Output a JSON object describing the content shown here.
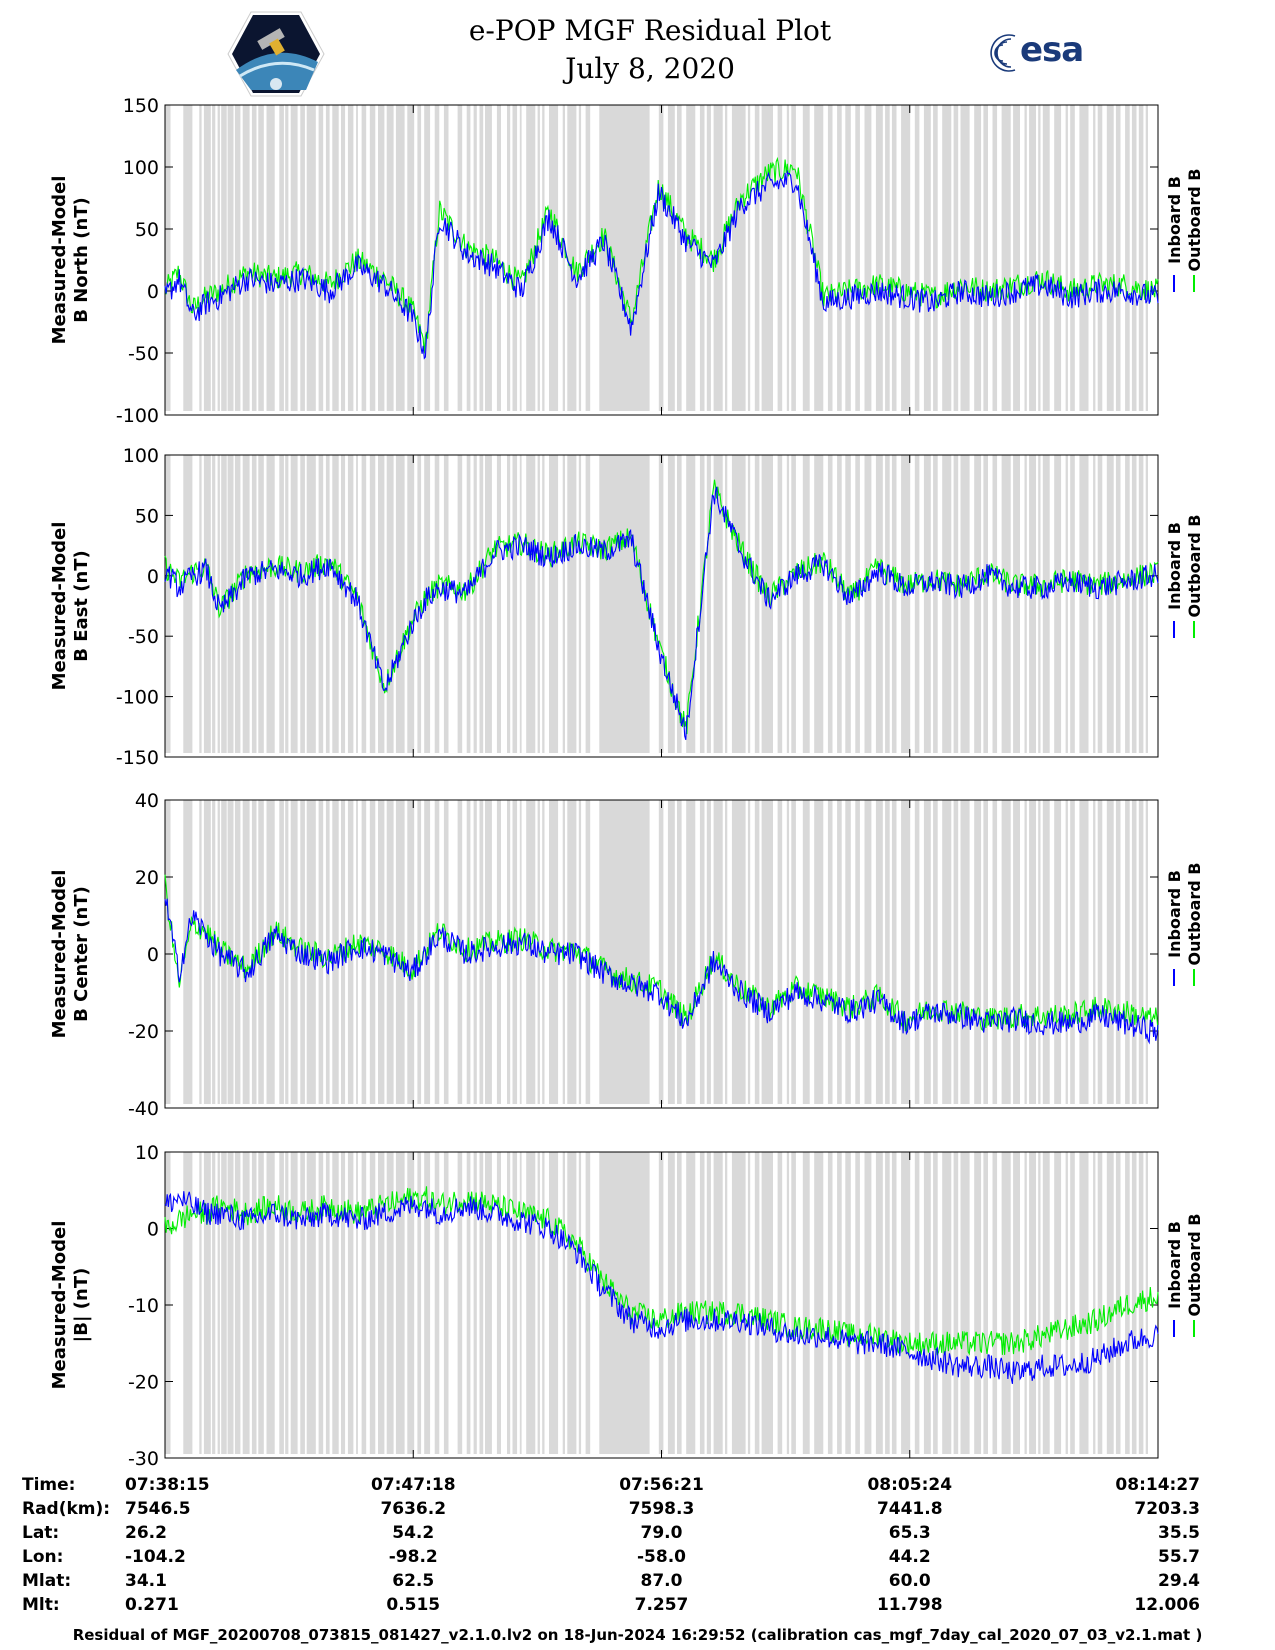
{
  "header": {
    "title": "e-POP MGF Residual Plot",
    "date": "July 8, 2020"
  },
  "logo_esa_text": "esa",
  "colors": {
    "inboard": "#0000ff",
    "outboard": "#00ee00",
    "shading": "#d9d9d9"
  },
  "chart_data": [
    {
      "type": "line",
      "ylabel": [
        "Measured-Model",
        "B North (nT)"
      ],
      "ylim": [
        -100,
        150
      ],
      "yticks": [
        150,
        100,
        50,
        0,
        -50,
        -100
      ],
      "legend": [
        "Inboard B",
        "Outboard B"
      ],
      "legend_position": "right",
      "x": [
        0,
        30,
        60,
        90,
        120,
        180,
        240,
        300,
        360,
        420,
        480,
        540,
        570,
        600,
        660,
        720,
        780,
        840,
        900,
        960,
        1020,
        1080,
        1140,
        1200,
        1260,
        1320,
        1380,
        1440,
        1500,
        1560,
        1620,
        1680,
        1740,
        1800,
        1860,
        1920,
        1980,
        2040,
        2100,
        2160
      ],
      "series": [
        {
          "name": "Inboard B",
          "values": [
            -5,
            10,
            -20,
            -10,
            -5,
            10,
            5,
            10,
            0,
            20,
            5,
            -20,
            -50,
            60,
            30,
            20,
            0,
            60,
            10,
            40,
            -30,
            80,
            40,
            20,
            70,
            85,
            90,
            -10,
            -5,
            0,
            -5,
            -10,
            0,
            -5,
            0,
            5,
            -5,
            0,
            0,
            -5
          ]
        },
        {
          "name": "Outboard B",
          "values": [
            0,
            15,
            -15,
            -5,
            0,
            15,
            10,
            15,
            5,
            25,
            10,
            -15,
            -45,
            65,
            35,
            25,
            5,
            65,
            15,
            45,
            -25,
            85,
            45,
            25,
            75,
            95,
            100,
            -5,
            0,
            5,
            0,
            -5,
            5,
            0,
            5,
            10,
            0,
            5,
            5,
            0
          ]
        }
      ]
    },
    {
      "type": "line",
      "ylabel": [
        "Measured-Model",
        "B East (nT)"
      ],
      "ylim": [
        -150,
        100
      ],
      "yticks": [
        100,
        50,
        0,
        -50,
        -100,
        -150
      ],
      "legend": [
        "Inboard B",
        "Outboard B"
      ],
      "legend_position": "right",
      "x": [
        0,
        30,
        60,
        90,
        120,
        180,
        240,
        300,
        360,
        420,
        480,
        540,
        570,
        600,
        660,
        720,
        780,
        840,
        900,
        960,
        1020,
        1080,
        1140,
        1200,
        1260,
        1320,
        1380,
        1440,
        1500,
        1560,
        1620,
        1680,
        1740,
        1800,
        1860,
        1920,
        1980,
        2040,
        2100,
        2160
      ],
      "series": [
        {
          "name": "Inboard B",
          "values": [
            5,
            -10,
            0,
            5,
            -30,
            0,
            5,
            0,
            10,
            -20,
            -95,
            -40,
            -20,
            -10,
            -15,
            20,
            25,
            15,
            25,
            20,
            30,
            -60,
            -130,
            70,
            20,
            -20,
            0,
            10,
            -20,
            5,
            -10,
            -5,
            -10,
            0,
            -10,
            -10,
            -5,
            -10,
            -5,
            0
          ]
        },
        {
          "name": "Outboard B",
          "values": [
            8,
            -5,
            3,
            8,
            -28,
            3,
            8,
            3,
            12,
            -18,
            -92,
            -38,
            -18,
            -8,
            -12,
            22,
            27,
            17,
            27,
            22,
            32,
            -58,
            -128,
            72,
            22,
            -18,
            2,
            12,
            -18,
            7,
            -8,
            -3,
            -8,
            2,
            -8,
            -8,
            -3,
            -8,
            -3,
            2
          ]
        }
      ]
    },
    {
      "type": "line",
      "ylabel": [
        "Measured-Model",
        "B Center (nT)"
      ],
      "ylim": [
        -40,
        40
      ],
      "yticks": [
        40,
        20,
        0,
        -20,
        -40
      ],
      "legend": [
        "Inboard B",
        "Outboard B"
      ],
      "legend_position": "right",
      "x": [
        0,
        30,
        60,
        90,
        120,
        180,
        240,
        300,
        360,
        420,
        480,
        540,
        570,
        600,
        660,
        720,
        780,
        840,
        900,
        960,
        1020,
        1080,
        1140,
        1200,
        1260,
        1320,
        1380,
        1440,
        1500,
        1560,
        1620,
        1680,
        1740,
        1800,
        1860,
        1920,
        1980,
        2040,
        2100,
        2160
      ],
      "series": [
        {
          "name": "Inboard B",
          "values": [
            15,
            -5,
            10,
            5,
            0,
            -5,
            5,
            0,
            -2,
            2,
            0,
            -5,
            0,
            5,
            0,
            2,
            3,
            0,
            0,
            -5,
            -8,
            -10,
            -18,
            -2,
            -10,
            -15,
            -10,
            -12,
            -15,
            -12,
            -18,
            -15,
            -16,
            -18,
            -17,
            -18,
            -18,
            -16,
            -18,
            -20
          ]
        },
        {
          "name": "Outboard B",
          "values": [
            18,
            -8,
            8,
            6,
            1,
            -4,
            6,
            1,
            -1,
            3,
            1,
            -4,
            1,
            6,
            1,
            3,
            4,
            1,
            1,
            -4,
            -7,
            -9,
            -17,
            -1,
            -9,
            -14,
            -9,
            -11,
            -14,
            -11,
            -17,
            -14,
            -15,
            -17,
            -16,
            -16,
            -16,
            -14,
            -15,
            -17
          ]
        }
      ]
    },
    {
      "type": "line",
      "ylabel": [
        "Measured-Model",
        "|B| (nT)"
      ],
      "ylim": [
        -30,
        10
      ],
      "yticks": [
        10,
        0,
        -10,
        -20,
        -30
      ],
      "legend": [
        "Inboard B",
        "Outboard B"
      ],
      "legend_position": "right",
      "x": [
        0,
        30,
        60,
        90,
        120,
        180,
        240,
        300,
        360,
        420,
        480,
        540,
        570,
        600,
        660,
        720,
        780,
        840,
        900,
        960,
        1020,
        1080,
        1140,
        1200,
        1260,
        1320,
        1380,
        1440,
        1500,
        1560,
        1620,
        1680,
        1740,
        1800,
        1860,
        1920,
        1980,
        2040,
        2100,
        2160
      ],
      "series": [
        {
          "name": "Inboard B",
          "values": [
            3,
            4,
            3,
            2,
            2,
            1,
            2,
            1,
            2,
            1,
            2,
            3,
            3,
            2,
            3,
            2,
            1,
            0,
            -3,
            -8,
            -12,
            -13,
            -12,
            -12,
            -12,
            -13,
            -14,
            -14,
            -15,
            -15,
            -16,
            -17,
            -18,
            -18,
            -19,
            -18,
            -18,
            -17,
            -15,
            -14
          ]
        },
        {
          "name": "Outboard B",
          "values": [
            0,
            1,
            2,
            2,
            3,
            2,
            3,
            2,
            3,
            2,
            3,
            4,
            4,
            3,
            4,
            3,
            2,
            1,
            -2,
            -7,
            -11,
            -12,
            -11,
            -11,
            -11,
            -12,
            -13,
            -13,
            -14,
            -14,
            -15,
            -15,
            -15,
            -15,
            -15,
            -14,
            -13,
            -12,
            -10,
            -9
          ]
        }
      ]
    }
  ],
  "shading_bands": [
    [
      0,
      12
    ],
    [
      40,
      60
    ],
    [
      75,
      80
    ],
    [
      85,
      100
    ],
    [
      103,
      110
    ],
    [
      115,
      120
    ],
    [
      123,
      135
    ],
    [
      137,
      150
    ],
    [
      153,
      165
    ],
    [
      170,
      185
    ],
    [
      190,
      200
    ],
    [
      204,
      216
    ],
    [
      222,
      240
    ],
    [
      250,
      260
    ],
    [
      263,
      270
    ],
    [
      275,
      290
    ],
    [
      296,
      306
    ],
    [
      310,
      330
    ],
    [
      336,
      346
    ],
    [
      352,
      360
    ],
    [
      366,
      380
    ],
    [
      385,
      394
    ],
    [
      400,
      412
    ],
    [
      418,
      422
    ],
    [
      430,
      440
    ],
    [
      448,
      460
    ],
    [
      466,
      480
    ],
    [
      485,
      500
    ],
    [
      505,
      524
    ],
    [
      530,
      545
    ],
    [
      552,
      560
    ],
    [
      567,
      580
    ],
    [
      590,
      600
    ],
    [
      610,
      620
    ],
    [
      640,
      650
    ],
    [
      660,
      668
    ],
    [
      675,
      682
    ],
    [
      688,
      696
    ],
    [
      700,
      715
    ],
    [
      726,
      735
    ],
    [
      748,
      755
    ],
    [
      760,
      770
    ],
    [
      776,
      780
    ],
    [
      790,
      810
    ],
    [
      815,
      820
    ],
    [
      825,
      830
    ],
    [
      840,
      860
    ],
    [
      870,
      875
    ],
    [
      880,
      900
    ],
    [
      905,
      910
    ],
    [
      920,
      930
    ],
    [
      950,
      1060
    ],
    [
      1080,
      1090
    ],
    [
      1100,
      1115
    ],
    [
      1120,
      1130
    ],
    [
      1140,
      1160
    ],
    [
      1170,
      1180
    ],
    [
      1185,
      1194
    ],
    [
      1200,
      1220
    ],
    [
      1225,
      1230
    ],
    [
      1240,
      1270
    ],
    [
      1275,
      1280
    ],
    [
      1290,
      1300
    ],
    [
      1305,
      1330
    ],
    [
      1340,
      1350
    ],
    [
      1360,
      1365
    ],
    [
      1370,
      1380
    ],
    [
      1395,
      1410
    ],
    [
      1420,
      1440
    ],
    [
      1450,
      1460
    ],
    [
      1470,
      1480
    ],
    [
      1488,
      1500
    ],
    [
      1510,
      1520
    ],
    [
      1530,
      1545
    ],
    [
      1555,
      1570
    ],
    [
      1575,
      1585
    ],
    [
      1590,
      1600
    ],
    [
      1610,
      1630
    ],
    [
      1640,
      1650
    ],
    [
      1660,
      1675
    ],
    [
      1680,
      1690
    ],
    [
      1700,
      1720
    ],
    [
      1725,
      1735
    ],
    [
      1740,
      1760
    ],
    [
      1770,
      1785
    ],
    [
      1790,
      1800
    ],
    [
      1810,
      1820
    ],
    [
      1830,
      1850
    ],
    [
      1855,
      1870
    ],
    [
      1880,
      1885
    ],
    [
      1890,
      1905
    ],
    [
      1910,
      1915
    ],
    [
      1920,
      1935
    ],
    [
      1945,
      1960
    ],
    [
      1970,
      1975
    ],
    [
      1980,
      1990
    ],
    [
      2000,
      2020
    ],
    [
      2030,
      2035
    ],
    [
      2040,
      2050
    ],
    [
      2060,
      2075
    ],
    [
      2080,
      2090
    ],
    [
      2100,
      2110
    ],
    [
      2115,
      2125
    ],
    [
      2130,
      2140
    ],
    [
      2145,
      2150
    ]
  ],
  "x_axis": {
    "range": [
      0,
      2172
    ],
    "tick_positions": [
      0,
      543,
      1086,
      1629,
      2172
    ]
  },
  "info_table": {
    "labels": [
      "Time:",
      "Rad(km):",
      "Lat:",
      "Lon:",
      "Mlat:",
      "Mlt:"
    ],
    "columns": [
      [
        "07:38:15",
        "7546.5",
        "26.2",
        "-104.2",
        "34.1",
        "0.271"
      ],
      [
        "07:47:18",
        "7636.2",
        "54.2",
        "-98.2",
        "62.5",
        "0.515"
      ],
      [
        "07:56:21",
        "7598.3",
        "79.0",
        "-58.0",
        "87.0",
        "7.257"
      ],
      [
        "08:05:24",
        "7441.8",
        "65.3",
        "44.2",
        "60.0",
        "11.798"
      ],
      [
        "08:14:27",
        "7203.3",
        "35.5",
        "55.7",
        "29.4",
        "12.006"
      ]
    ]
  },
  "footer": "Residual of MGF_20200708_073815_081427_v2.1.0.lv2 on 18-Jun-2024 16:29:52 (calibration cas_mgf_7day_cal_2020_07_03_v2.1.mat )"
}
